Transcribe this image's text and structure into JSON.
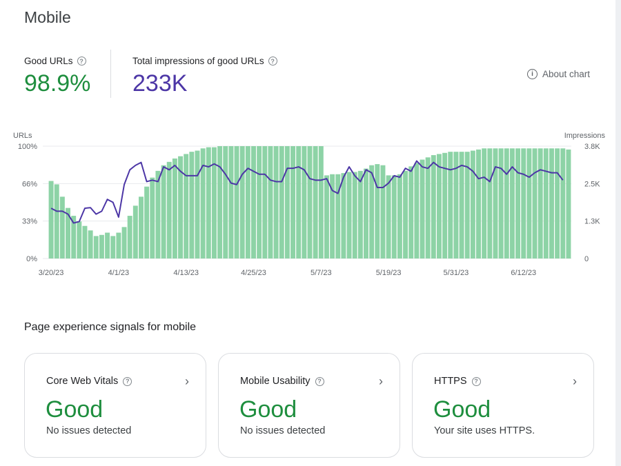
{
  "title": "Mobile",
  "metrics": {
    "good_urls": {
      "label": "Good URLs",
      "value": "98.9%",
      "color": "#1e8e3e"
    },
    "impressions": {
      "label": "Total impressions of good URLs",
      "value": "233K",
      "color": "#4c36a6"
    }
  },
  "about_chart": "About chart",
  "chart_data": {
    "type": "bar",
    "left_axis_title": "URLs",
    "right_axis_title": "Impressions",
    "left_ticks": [
      "100%",
      "66%",
      "33%",
      "0%"
    ],
    "right_ticks": [
      "3.8K",
      "2.5K",
      "1.3K",
      "0"
    ],
    "x_tick_labels": [
      "3/20/23",
      "4/1/23",
      "4/13/23",
      "4/25/23",
      "5/7/23",
      "5/19/23",
      "5/31/23",
      "6/12/23"
    ],
    "x_tick_indices": [
      0,
      12,
      24,
      36,
      48,
      60,
      72,
      84
    ],
    "bar_color": "#8dd3a6",
    "line_color": "#4c36a6",
    "series": [
      {
        "name": "Good URLs %",
        "axis": "left",
        "values": [
          69,
          66,
          55,
          45,
          38,
          33,
          29,
          25,
          20,
          21,
          23,
          20,
          23,
          28,
          38,
          47,
          55,
          64,
          72,
          78,
          83,
          86,
          89,
          91,
          93,
          95,
          96,
          98,
          99,
          99,
          100,
          100,
          100,
          100,
          100,
          100,
          100,
          100,
          100,
          100,
          100,
          100,
          100,
          100,
          100,
          100,
          100,
          100,
          100,
          74,
          75,
          75,
          76,
          77,
          77,
          78,
          80,
          83,
          84,
          83,
          74,
          74,
          75,
          78,
          82,
          85,
          88,
          90,
          92,
          93,
          94,
          95,
          95,
          95,
          95,
          96,
          97,
          98,
          98,
          98,
          98,
          98,
          98,
          98,
          98,
          98,
          98,
          98,
          98,
          98,
          98,
          98,
          97
        ]
      },
      {
        "name": "Impressions",
        "axis": "right",
        "values": [
          1.7,
          1.6,
          1.6,
          1.5,
          1.2,
          1.25,
          1.7,
          1.72,
          1.5,
          1.6,
          2.0,
          1.9,
          1.4,
          2.5,
          3.0,
          3.15,
          3.25,
          2.6,
          2.65,
          2.6,
          3.1,
          3.0,
          3.15,
          2.95,
          2.8,
          2.8,
          2.8,
          3.15,
          3.1,
          3.2,
          3.1,
          2.85,
          2.55,
          2.5,
          2.85,
          3.05,
          2.95,
          2.85,
          2.85,
          2.65,
          2.6,
          2.6,
          3.05,
          3.05,
          3.1,
          3.0,
          2.7,
          2.65,
          2.65,
          2.7,
          2.3,
          2.2,
          2.75,
          3.1,
          2.8,
          2.6,
          3.0,
          2.9,
          2.4,
          2.4,
          2.55,
          2.8,
          2.75,
          3.05,
          2.95,
          3.3,
          3.1,
          3.05,
          3.25,
          3.1,
          3.05,
          3.0,
          3.05,
          3.15,
          3.1,
          2.95,
          2.7,
          2.75,
          2.6,
          3.1,
          3.05,
          2.85,
          3.1,
          2.9,
          2.85,
          2.75,
          2.9,
          3.0,
          2.95,
          2.9,
          2.9,
          2.65
        ]
      }
    ]
  },
  "section_title": "Page experience signals for mobile",
  "cards": [
    {
      "title": "Core Web Vitals",
      "status": "Good",
      "desc": "No issues detected"
    },
    {
      "title": "Mobile Usability",
      "status": "Good",
      "desc": "No issues detected"
    },
    {
      "title": "HTTPS",
      "status": "Good",
      "desc": "Your site uses HTTPS."
    }
  ]
}
